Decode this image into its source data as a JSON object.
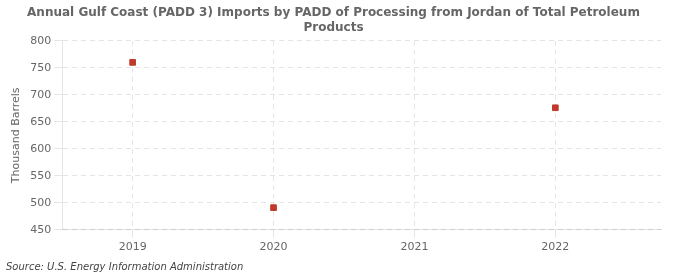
{
  "chart_data": {
    "type": "scatter",
    "title": "Annual Gulf Coast (PADD 3) Imports by PADD of Processing from Jordan of Total Petroleum\nProducts",
    "ylabel": "Thousand Barrels",
    "source": "Source: U.S. Energy Information Administration",
    "x": [
      2019,
      2020,
      2021,
      2022
    ],
    "values": [
      760,
      491,
      null,
      676
    ],
    "xlim": [
      2018.5,
      2022.75
    ],
    "xticks": [
      2019,
      2020,
      2021,
      2022
    ],
    "ylim": [
      450,
      800
    ],
    "yticks": [
      450,
      500,
      550,
      600,
      650,
      700,
      750,
      800
    ],
    "color": "#c0392b",
    "marker": "square",
    "grid": true
  }
}
